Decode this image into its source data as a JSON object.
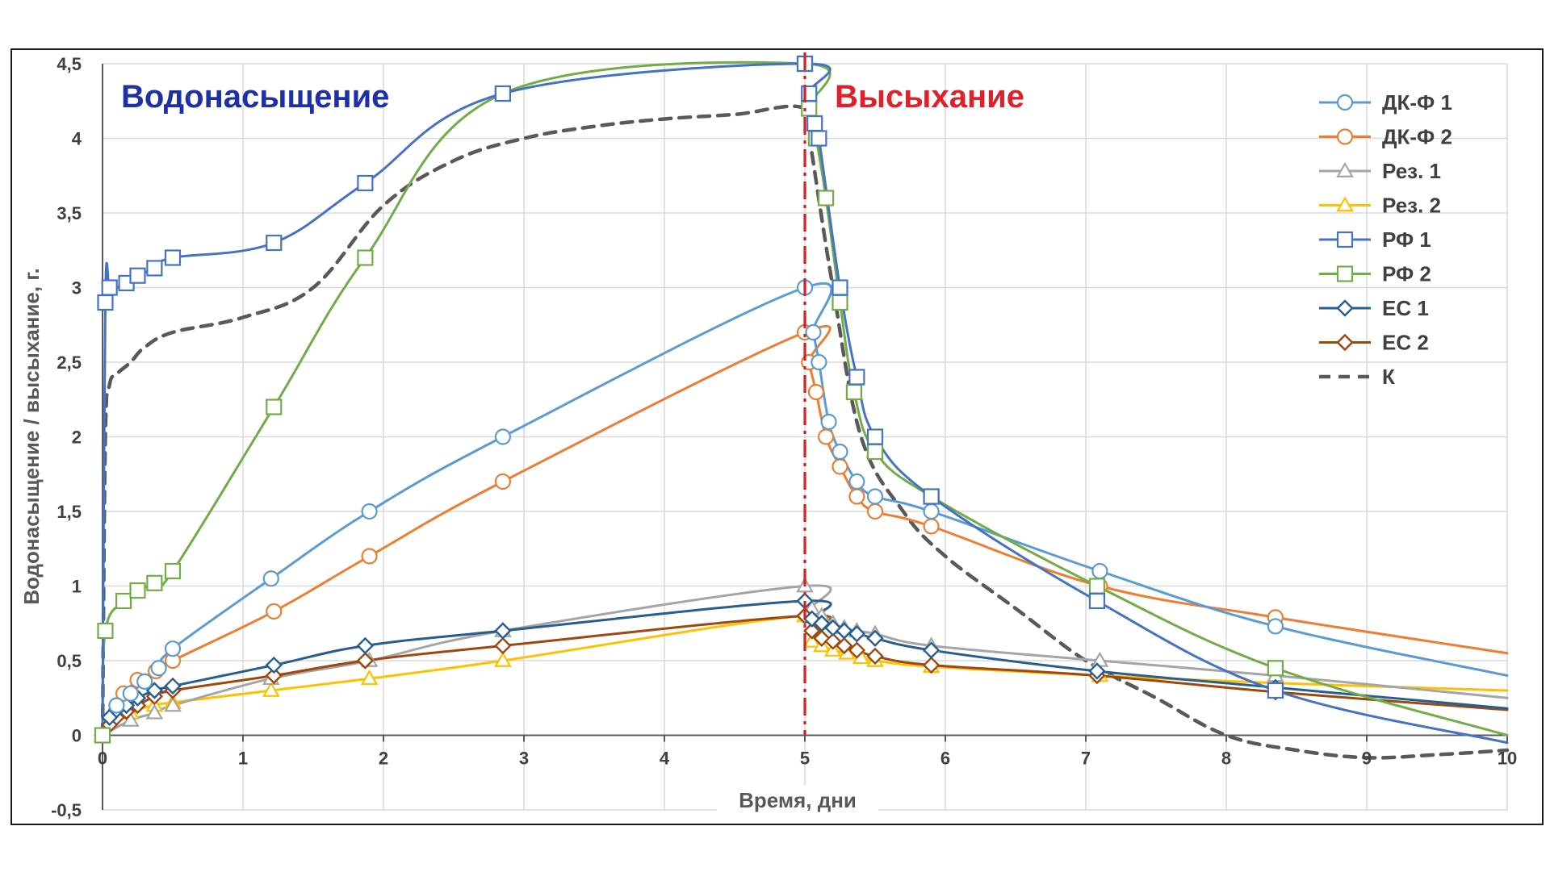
{
  "chart_data": {
    "type": "line",
    "title": "",
    "xlabel": "Время, дни",
    "ylabel": "Водонасыщение / высыхание, г.",
    "xlim": [
      0,
      10
    ],
    "ylim": [
      -0.5,
      4.5
    ],
    "x_ticks": [
      "0",
      "1",
      "2",
      "3",
      "4",
      "5",
      "6",
      "7",
      "8",
      "9",
      "10"
    ],
    "y_ticks": [
      "-0,5",
      "0",
      "0,5",
      "1",
      "1,5",
      "2",
      "2,5",
      "3",
      "3,5",
      "4",
      "4,5"
    ],
    "grid": true,
    "legend_position": "top-right",
    "annotations": [
      {
        "text": "Водонасыщение",
        "color": "#1f2fa6"
      },
      {
        "text": "Высыхание",
        "color": "#e0202a"
      }
    ],
    "divider": {
      "x": 5,
      "color": "#d42027",
      "style": "dash-dot"
    },
    "series": [
      {
        "name": "ДК-Ф 1",
        "color": "#5b9bd5",
        "marker": "circle",
        "x": [
          0,
          0.05,
          0.1,
          0.2,
          0.3,
          0.4,
          0.5,
          1.2,
          1.9,
          2.85,
          5,
          5.06,
          5.1,
          5.17,
          5.25,
          5.37,
          5.5,
          5.9,
          7.1,
          8.35,
          10
        ],
        "y": [
          0,
          0.1,
          0.2,
          0.28,
          0.36,
          0.45,
          0.58,
          1.05,
          1.5,
          2.0,
          3.0,
          2.7,
          2.5,
          2.1,
          1.9,
          1.7,
          1.6,
          1.5,
          1.1,
          0.73,
          0.4
        ],
        "marked": [
          0,
          2,
          3,
          4,
          5,
          6,
          7,
          8,
          9,
          10,
          11,
          12,
          13,
          14,
          15,
          16,
          17,
          18,
          19
        ]
      },
      {
        "name": "ДК-Ф 2",
        "color": "#ed7d31",
        "marker": "circle",
        "x": [
          0,
          0.1,
          0.15,
          0.25,
          0.38,
          0.5,
          1.22,
          1.9,
          2.85,
          5,
          5.03,
          5.08,
          5.15,
          5.25,
          5.37,
          5.5,
          5.9,
          7.1,
          8.35,
          10
        ],
        "y": [
          0,
          0.2,
          0.28,
          0.37,
          0.43,
          0.5,
          0.83,
          1.2,
          1.7,
          2.7,
          2.5,
          2.3,
          2.0,
          1.8,
          1.6,
          1.5,
          1.4,
          1.0,
          0.79,
          0.55
        ],
        "marked": [
          0,
          2,
          3,
          4,
          5,
          6,
          7,
          8,
          9,
          10,
          11,
          12,
          13,
          14,
          15,
          16,
          17,
          18
        ]
      },
      {
        "name": "Рез. 1",
        "color": "#a5a5a5",
        "marker": "triangle",
        "x": [
          0,
          0.2,
          0.37,
          0.5,
          1.2,
          1.9,
          2.85,
          5,
          5.05,
          5.12,
          5.2,
          5.28,
          5.37,
          5.5,
          5.9,
          7.1,
          8.35,
          10
        ],
        "y": [
          0,
          0.1,
          0.15,
          0.2,
          0.38,
          0.5,
          0.7,
          1.0,
          0.85,
          0.8,
          0.75,
          0.72,
          0.7,
          0.68,
          0.6,
          0.5,
          0.4,
          0.25
        ],
        "marked": [
          0,
          1,
          2,
          3,
          4,
          5,
          6,
          7,
          8,
          9,
          10,
          11,
          12,
          13,
          14,
          15,
          16
        ]
      },
      {
        "name": "Рез. 2",
        "color": "#ffc000",
        "marker": "triangle",
        "x": [
          0,
          0.2,
          0.37,
          0.5,
          1.2,
          1.9,
          2.85,
          5,
          5.05,
          5.12,
          5.2,
          5.3,
          5.4,
          5.5,
          5.9,
          7.1,
          8.35,
          10
        ],
        "y": [
          0,
          0.15,
          0.2,
          0.22,
          0.3,
          0.38,
          0.5,
          0.8,
          0.63,
          0.6,
          0.57,
          0.55,
          0.52,
          0.5,
          0.46,
          0.4,
          0.35,
          0.3
        ],
        "marked": [
          0,
          1,
          2,
          3,
          4,
          5,
          6,
          7,
          8,
          9,
          10,
          11,
          12,
          13,
          14,
          15,
          16
        ]
      },
      {
        "name": "РФ 1",
        "color": "#4472c4",
        "marker": "square",
        "x": [
          0,
          0.02,
          0.05,
          0.1,
          0.17,
          0.25,
          0.37,
          0.5,
          1.22,
          1.87,
          2.85,
          5,
          5.03,
          5.07,
          5.1,
          5.25,
          5.37,
          5.5,
          5.9,
          7.08,
          8.35,
          10
        ],
        "y": [
          0,
          2.9,
          3.0,
          3.0,
          3.03,
          3.08,
          3.13,
          3.2,
          3.3,
          3.7,
          4.3,
          4.5,
          4.3,
          4.1,
          4.0,
          3.0,
          2.4,
          2.0,
          1.6,
          0.9,
          0.3,
          -0.05
        ],
        "marked": [
          1,
          2,
          4,
          5,
          6,
          7,
          8,
          9,
          10,
          11,
          12,
          13,
          14,
          15,
          16,
          17,
          18,
          19,
          20
        ]
      },
      {
        "name": "РФ 2",
        "color": "#70ad47",
        "marker": "square",
        "x": [
          0,
          0.02,
          0.15,
          0.25,
          0.37,
          0.5,
          1.22,
          1.87,
          2.85,
          5,
          5.03,
          5.08,
          5.15,
          5.25,
          5.35,
          5.5,
          5.9,
          7.08,
          8.35,
          10
        ],
        "y": [
          0,
          0.7,
          0.9,
          0.97,
          1.02,
          1.1,
          2.2,
          3.2,
          4.3,
          4.5,
          4.2,
          4.0,
          3.6,
          2.9,
          2.3,
          1.9,
          1.6,
          1.0,
          0.45,
          0.0
        ],
        "marked": [
          0,
          1,
          2,
          3,
          4,
          5,
          6,
          7,
          8,
          9,
          10,
          11,
          12,
          13,
          14,
          15,
          16,
          17,
          18
        ]
      },
      {
        "name": "ЕС 1",
        "color": "#255e91",
        "marker": "diamond",
        "x": [
          0,
          0.05,
          0.1,
          0.17,
          0.25,
          0.37,
          0.5,
          1.22,
          1.87,
          2.85,
          5,
          5.05,
          5.12,
          5.2,
          5.28,
          5.37,
          5.5,
          5.9,
          7.08,
          8.35,
          10
        ],
        "y": [
          0,
          0.12,
          0.17,
          0.2,
          0.25,
          0.3,
          0.33,
          0.47,
          0.6,
          0.7,
          0.9,
          0.78,
          0.75,
          0.72,
          0.7,
          0.68,
          0.65,
          0.57,
          0.43,
          0.32,
          0.18
        ],
        "marked": [
          0,
          1,
          2,
          3,
          4,
          5,
          6,
          7,
          8,
          9,
          10,
          11,
          12,
          13,
          14,
          15,
          16,
          17,
          18,
          19
        ]
      },
      {
        "name": "ЕС 2",
        "color": "#9e480e",
        "marker": "diamond",
        "x": [
          0,
          0.05,
          0.1,
          0.17,
          0.25,
          0.37,
          0.5,
          1.22,
          1.87,
          2.85,
          5,
          5.05,
          5.12,
          5.2,
          5.28,
          5.37,
          5.5,
          5.9,
          7.08,
          8.35,
          10
        ],
        "y": [
          0,
          0.07,
          0.12,
          0.16,
          0.2,
          0.26,
          0.3,
          0.4,
          0.5,
          0.6,
          0.8,
          0.7,
          0.65,
          0.63,
          0.6,
          0.57,
          0.53,
          0.47,
          0.4,
          0.29,
          0.17
        ],
        "marked": [
          0,
          1,
          2,
          3,
          4,
          5,
          6,
          7,
          8,
          9,
          10,
          11,
          12,
          13,
          14,
          15,
          16,
          17,
          18,
          19
        ]
      },
      {
        "name": "К",
        "color": "#595959",
        "marker": "none",
        "dashed": true,
        "x": [
          0,
          0.02,
          0.05,
          0.1,
          0.2,
          0.3,
          0.5,
          1.0,
          1.5,
          2.0,
          2.5,
          3.0,
          3.5,
          4.0,
          4.5,
          5.0,
          5.05,
          5.2,
          5.4,
          5.7,
          6.0,
          6.5,
          7.0,
          7.5,
          8.0,
          8.5,
          9.0,
          9.5,
          10
        ],
        "y": [
          0,
          2.0,
          2.35,
          2.42,
          2.5,
          2.6,
          2.7,
          2.8,
          3.0,
          3.55,
          3.85,
          4.0,
          4.08,
          4.13,
          4.16,
          4.2,
          3.9,
          3.0,
          2.0,
          1.5,
          1.2,
          0.85,
          0.5,
          0.25,
          0.0,
          -0.1,
          -0.15,
          -0.13,
          -0.1
        ],
        "marked": []
      }
    ]
  }
}
